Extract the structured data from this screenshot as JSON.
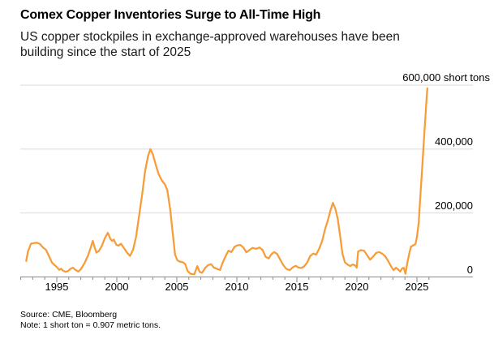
{
  "header": {
    "title": "Comex Copper Inventories Surge to All-Time High",
    "subtitle_lines": [
      "US copper stockpiles in exchange-approved warehouses have been",
      "building since the start of 2025"
    ]
  },
  "chart_data": {
    "type": "line",
    "title": "Comex Copper Inventories Surge to All-Time High",
    "unit": "short tons",
    "grid": "horizontal",
    "legend_position": "none",
    "x_domain": [
      1992,
      2029.7
    ],
    "y_domain": [
      0,
      600000
    ],
    "y_ticks": [
      {
        "value": 0,
        "label": "0"
      },
      {
        "value": 200000,
        "label": "200,000"
      },
      {
        "value": 400000,
        "label": "400,000"
      },
      {
        "value": 600000,
        "label": "600,000 short tons"
      }
    ],
    "x_ticks": [
      {
        "year": 1995,
        "label": "1995"
      },
      {
        "year": 2000,
        "label": "2000"
      },
      {
        "year": 2005,
        "label": "2005"
      },
      {
        "year": 2010,
        "label": "2010"
      },
      {
        "year": 2015,
        "label": "2015"
      },
      {
        "year": 2020,
        "label": "2020"
      },
      {
        "year": 2025,
        "label": "2025"
      }
    ],
    "minor_tick_years": {
      "start": 1992,
      "end": 2026,
      "step": 1
    },
    "colors": {
      "line": "#F79C36",
      "grid": "#DBDBDB",
      "axis": "#8A8A8A",
      "text": "#000000"
    },
    "series": [
      {
        "name": "Comex copper inventories (short tons)",
        "color": "#F79C36",
        "points": [
          [
            1992.45,
            50000
          ],
          [
            1992.6,
            80000
          ],
          [
            1992.85,
            104000
          ],
          [
            1993.1,
            106000
          ],
          [
            1993.35,
            107000
          ],
          [
            1993.6,
            103000
          ],
          [
            1993.85,
            92000
          ],
          [
            1994.1,
            85000
          ],
          [
            1994.35,
            65000
          ],
          [
            1994.6,
            45000
          ],
          [
            1994.8,
            38000
          ],
          [
            1995.0,
            31000
          ],
          [
            1995.2,
            22000
          ],
          [
            1995.35,
            26000
          ],
          [
            1995.55,
            19000
          ],
          [
            1995.75,
            16000
          ],
          [
            1995.95,
            19000
          ],
          [
            1996.15,
            26000
          ],
          [
            1996.35,
            29000
          ],
          [
            1996.55,
            22000
          ],
          [
            1996.8,
            17000
          ],
          [
            1997.0,
            24000
          ],
          [
            1997.3,
            42000
          ],
          [
            1997.6,
            67000
          ],
          [
            1997.85,
            95000
          ],
          [
            1998.0,
            113000
          ],
          [
            1998.15,
            93000
          ],
          [
            1998.3,
            76000
          ],
          [
            1998.5,
            81000
          ],
          [
            1998.75,
            97000
          ],
          [
            1999.0,
            121000
          ],
          [
            1999.25,
            138000
          ],
          [
            1999.45,
            120000
          ],
          [
            1999.6,
            113000
          ],
          [
            1999.75,
            117000
          ],
          [
            1999.95,
            101000
          ],
          [
            2000.15,
            98000
          ],
          [
            2000.35,
            104000
          ],
          [
            2000.6,
            90000
          ],
          [
            2000.85,
            76000
          ],
          [
            2001.1,
            66000
          ],
          [
            2001.35,
            85000
          ],
          [
            2001.6,
            125000
          ],
          [
            2001.85,
            190000
          ],
          [
            2002.1,
            255000
          ],
          [
            2002.35,
            330000
          ],
          [
            2002.6,
            378000
          ],
          [
            2002.8,
            400000
          ],
          [
            2003.0,
            384000
          ],
          [
            2003.25,
            350000
          ],
          [
            2003.5,
            320000
          ],
          [
            2003.75,
            302000
          ],
          [
            2004.0,
            290000
          ],
          [
            2004.2,
            272000
          ],
          [
            2004.45,
            210000
          ],
          [
            2004.65,
            140000
          ],
          [
            2004.85,
            70000
          ],
          [
            2005.05,
            52000
          ],
          [
            2005.25,
            48000
          ],
          [
            2005.5,
            46000
          ],
          [
            2005.7,
            40000
          ],
          [
            2005.9,
            18000
          ],
          [
            2006.15,
            10000
          ],
          [
            2006.45,
            8000
          ],
          [
            2006.7,
            34000
          ],
          [
            2006.9,
            16000
          ],
          [
            2007.1,
            13000
          ],
          [
            2007.35,
            28000
          ],
          [
            2007.6,
            37000
          ],
          [
            2007.85,
            40000
          ],
          [
            2008.1,
            29000
          ],
          [
            2008.35,
            25000
          ],
          [
            2008.6,
            22000
          ],
          [
            2008.85,
            48000
          ],
          [
            2009.1,
            68000
          ],
          [
            2009.3,
            82000
          ],
          [
            2009.55,
            78000
          ],
          [
            2009.8,
            94000
          ],
          [
            2010.05,
            99000
          ],
          [
            2010.3,
            100000
          ],
          [
            2010.55,
            92000
          ],
          [
            2010.8,
            77000
          ],
          [
            2011.05,
            84000
          ],
          [
            2011.3,
            91000
          ],
          [
            2011.6,
            88000
          ],
          [
            2011.9,
            92000
          ],
          [
            2012.15,
            84000
          ],
          [
            2012.4,
            63000
          ],
          [
            2012.65,
            58000
          ],
          [
            2012.9,
            72000
          ],
          [
            2013.1,
            78000
          ],
          [
            2013.35,
            72000
          ],
          [
            2013.6,
            55000
          ],
          [
            2013.85,
            38000
          ],
          [
            2014.1,
            26000
          ],
          [
            2014.4,
            21000
          ],
          [
            2014.65,
            30000
          ],
          [
            2014.9,
            35000
          ],
          [
            2015.1,
            30000
          ],
          [
            2015.35,
            28000
          ],
          [
            2015.6,
            33000
          ],
          [
            2015.85,
            45000
          ],
          [
            2016.1,
            65000
          ],
          [
            2016.35,
            73000
          ],
          [
            2016.6,
            70000
          ],
          [
            2016.85,
            88000
          ],
          [
            2017.1,
            112000
          ],
          [
            2017.35,
            150000
          ],
          [
            2017.6,
            180000
          ],
          [
            2017.8,
            208000
          ],
          [
            2018.0,
            232000
          ],
          [
            2018.2,
            213000
          ],
          [
            2018.4,
            183000
          ],
          [
            2018.6,
            128000
          ],
          [
            2018.8,
            72000
          ],
          [
            2019.0,
            46000
          ],
          [
            2019.2,
            39000
          ],
          [
            2019.45,
            34000
          ],
          [
            2019.65,
            39000
          ],
          [
            2019.85,
            36000
          ],
          [
            2019.98,
            29000
          ],
          [
            2020.1,
            80000
          ],
          [
            2020.35,
            84000
          ],
          [
            2020.6,
            82000
          ],
          [
            2020.85,
            68000
          ],
          [
            2021.1,
            54000
          ],
          [
            2021.35,
            64000
          ],
          [
            2021.6,
            75000
          ],
          [
            2021.85,
            78000
          ],
          [
            2022.1,
            73000
          ],
          [
            2022.35,
            65000
          ],
          [
            2022.6,
            50000
          ],
          [
            2022.85,
            33000
          ],
          [
            2023.05,
            21000
          ],
          [
            2023.25,
            29000
          ],
          [
            2023.45,
            23000
          ],
          [
            2023.6,
            17000
          ],
          [
            2023.75,
            26000
          ],
          [
            2023.9,
            29000
          ],
          [
            2024.05,
            10000
          ],
          [
            2024.2,
            45000
          ],
          [
            2024.35,
            72000
          ],
          [
            2024.5,
            95000
          ],
          [
            2024.7,
            99000
          ],
          [
            2024.88,
            103000
          ],
          [
            2025.0,
            125000
          ],
          [
            2025.15,
            170000
          ],
          [
            2025.3,
            260000
          ],
          [
            2025.45,
            350000
          ],
          [
            2025.6,
            440000
          ],
          [
            2025.72,
            510000
          ],
          [
            2025.8,
            555000
          ],
          [
            2025.87,
            590000
          ]
        ]
      }
    ]
  },
  "footer": {
    "source": "Source: CME, Bloomberg",
    "note": "Note: 1 short ton = 0.907 metric tons."
  }
}
